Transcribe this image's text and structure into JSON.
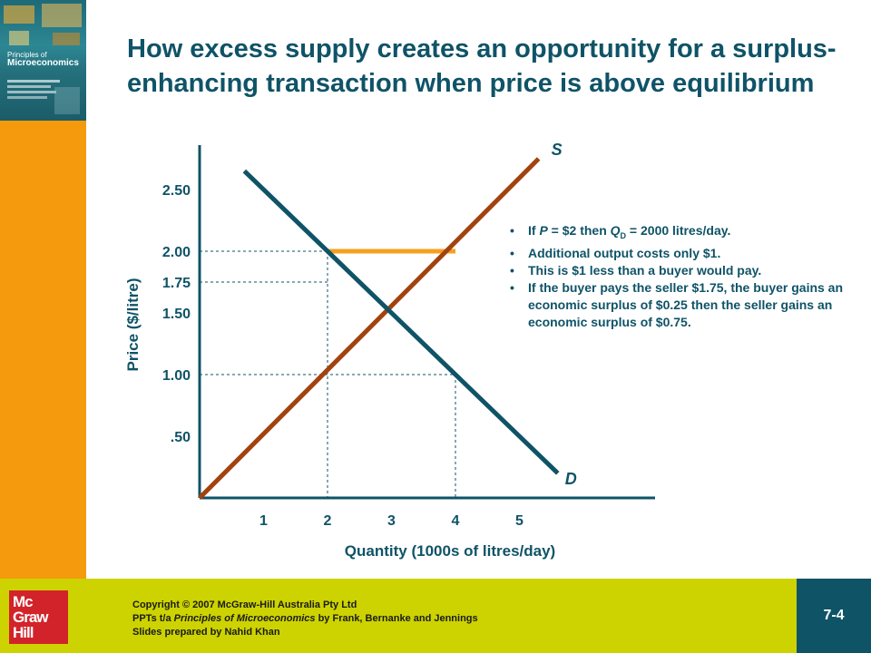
{
  "cover": {
    "line1": "Principles of",
    "line2": "Microeconomics"
  },
  "title": "How excess supply creates an opportunity for a surplus-enhancing transaction when price is above equilibrium",
  "notes": [
    [
      "If ",
      "P",
      " =  $2 then ",
      "Q",
      "D",
      " = 2000 litres/day."
    ],
    [
      "Additional output costs only $1."
    ],
    [
      "This is $1 less than a buyer would pay."
    ],
    [
      "If the buyer pays the seller $1.75, the buyer gains an economic surplus of $0.25 then the seller gains an economic surplus of $0.75."
    ]
  ],
  "footer": {
    "logo_lines": [
      "Mc",
      "Graw",
      "Hill"
    ],
    "copyright": "Copyright © 2007 McGraw-Hill Australia Pty Ltd",
    "ppts_prefix": "PPTs t/a ",
    "book": "Principles of Microeconomics",
    "ppts_suffix": " by Frank, Bernanke  and Jennings",
    "prepared": "Slides prepared by Nahid Khan",
    "page": "7-4"
  },
  "colors": {
    "teal": "#0f5367",
    "supply": "#a3420e",
    "gap": "#f5a020",
    "orange_bar": "#f59a0c",
    "lime": "#cdd300",
    "logo_red": "#d2232a"
  },
  "chart_data": {
    "type": "line",
    "xlabel": "Quantity (1000s of litres/day)",
    "ylabel": "Price ($/litre)",
    "x_ticks": [
      1,
      2,
      3,
      4,
      5
    ],
    "x_tick_labels": [
      "1",
      "2",
      "3",
      "4",
      "5"
    ],
    "y_ticks": [
      0.5,
      1.0,
      1.5,
      1.75,
      2.0,
      2.5
    ],
    "y_tick_labels": [
      ".50",
      "1.00",
      "1.50",
      "1.75",
      "2.00",
      "2.50"
    ],
    "xlim": [
      0,
      7
    ],
    "ylim": [
      0,
      2.9
    ],
    "series": [
      {
        "name": "S",
        "color": "#a3420e",
        "points": [
          [
            0,
            0
          ],
          [
            5.3,
            2.75
          ]
        ]
      },
      {
        "name": "D",
        "color": "#0f5367",
        "points": [
          [
            0.7,
            2.65
          ],
          [
            5.6,
            0.2
          ]
        ]
      }
    ],
    "excess_supply_segment": {
      "y": 2.0,
      "x_from": 2,
      "x_to": 4,
      "color": "#f5a020"
    },
    "dashed_guides": [
      {
        "y": 2.0,
        "x_to": 2,
        "v_from": 0,
        "v_to": 2.0
      },
      {
        "y": 1.75,
        "x_to": 2
      },
      {
        "y": 1.0,
        "x_to": 4,
        "v_from": 0,
        "v_to": 1.0
      }
    ]
  }
}
